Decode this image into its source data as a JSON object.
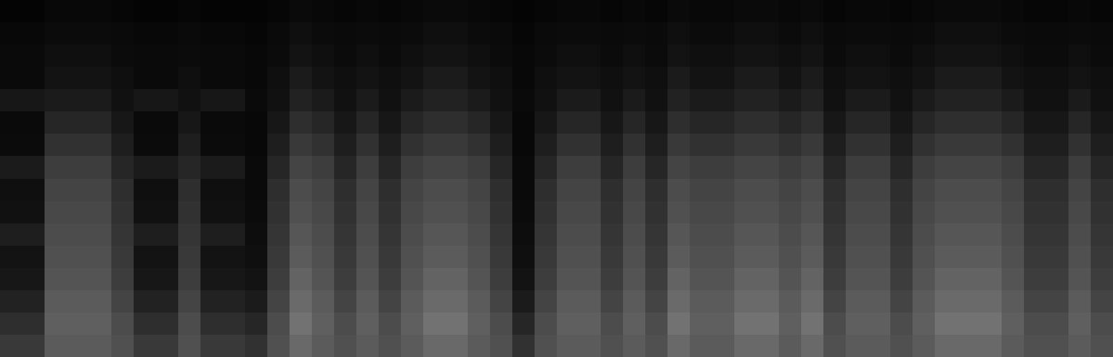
{
  "chart_data": {
    "type": "heatmap",
    "tick_labels": false,
    "zlim": [
      0,
      100
    ],
    "cells": [
      [
        2,
        2,
        4,
        4,
        4,
        3,
        2,
        2,
        3,
        2,
        2,
        2,
        3,
        5,
        4,
        3,
        4,
        3,
        4,
        5,
        5,
        4,
        3,
        2,
        3,
        4,
        4,
        3,
        4,
        3,
        5,
        4,
        4,
        5,
        5,
        4,
        5,
        3,
        4,
        4,
        3,
        4,
        5,
        5,
        5,
        4,
        3,
        3,
        4,
        3
      ],
      [
        4,
        4,
        6,
        6,
        6,
        5,
        4,
        4,
        5,
        4,
        4,
        3,
        5,
        8,
        6,
        5,
        6,
        5,
        6,
        8,
        8,
        6,
        5,
        3,
        5,
        6,
        6,
        5,
        6,
        5,
        8,
        6,
        6,
        8,
        8,
        6,
        8,
        5,
        6,
        6,
        5,
        6,
        8,
        8,
        8,
        6,
        5,
        5,
        6,
        5
      ],
      [
        5,
        5,
        8,
        8,
        8,
        6,
        5,
        5,
        6,
        5,
        5,
        4,
        6,
        10,
        8,
        6,
        8,
        6,
        8,
        10,
        10,
        8,
        6,
        4,
        6,
        8,
        8,
        6,
        8,
        6,
        10,
        8,
        8,
        10,
        10,
        8,
        10,
        6,
        8,
        8,
        6,
        8,
        10,
        10,
        10,
        8,
        6,
        6,
        8,
        6
      ],
      [
        5,
        5,
        10,
        10,
        10,
        8,
        5,
        5,
        8,
        5,
        5,
        4,
        8,
        14,
        10,
        8,
        10,
        8,
        10,
        14,
        14,
        10,
        8,
        4,
        8,
        10,
        10,
        8,
        10,
        8,
        14,
        10,
        10,
        14,
        14,
        10,
        14,
        8,
        10,
        10,
        8,
        10,
        14,
        14,
        14,
        10,
        8,
        8,
        10,
        8
      ],
      [
        12,
        12,
        14,
        14,
        14,
        9,
        12,
        12,
        9,
        12,
        12,
        5,
        9,
        18,
        14,
        9,
        14,
        9,
        14,
        18,
        18,
        14,
        9,
        5,
        9,
        14,
        14,
        9,
        14,
        9,
        18,
        14,
        14,
        18,
        18,
        14,
        18,
        9,
        14,
        14,
        9,
        14,
        18,
        18,
        18,
        14,
        9,
        9,
        14,
        9
      ],
      [
        5,
        5,
        20,
        20,
        20,
        12,
        5,
        5,
        12,
        5,
        5,
        4,
        12,
        24,
        20,
        12,
        20,
        12,
        20,
        24,
        24,
        20,
        12,
        4,
        12,
        20,
        20,
        12,
        20,
        12,
        24,
        20,
        20,
        24,
        24,
        20,
        24,
        12,
        20,
        20,
        12,
        20,
        24,
        24,
        24,
        20,
        12,
        12,
        20,
        12
      ],
      [
        6,
        6,
        26,
        26,
        26,
        16,
        6,
        6,
        16,
        6,
        6,
        4,
        16,
        30,
        26,
        16,
        26,
        16,
        26,
        30,
        30,
        26,
        16,
        4,
        16,
        26,
        26,
        16,
        26,
        16,
        30,
        26,
        26,
        30,
        30,
        26,
        30,
        16,
        26,
        26,
        16,
        26,
        30,
        30,
        30,
        26,
        16,
        16,
        26,
        16
      ],
      [
        14,
        14,
        32,
        32,
        32,
        20,
        14,
        14,
        20,
        14,
        14,
        5,
        20,
        36,
        32,
        20,
        32,
        20,
        32,
        36,
        36,
        32,
        20,
        5,
        20,
        32,
        32,
        20,
        32,
        20,
        36,
        32,
        32,
        36,
        36,
        32,
        36,
        20,
        32,
        32,
        20,
        32,
        36,
        36,
        36,
        32,
        20,
        20,
        32,
        20
      ],
      [
        8,
        8,
        36,
        36,
        36,
        24,
        8,
        8,
        24,
        8,
        8,
        5,
        24,
        40,
        36,
        24,
        36,
        24,
        36,
        40,
        40,
        36,
        24,
        5,
        24,
        36,
        36,
        24,
        36,
        24,
        40,
        36,
        36,
        40,
        40,
        36,
        40,
        24,
        36,
        36,
        24,
        36,
        40,
        40,
        40,
        36,
        24,
        24,
        36,
        24
      ],
      [
        9,
        9,
        38,
        38,
        38,
        26,
        9,
        9,
        26,
        9,
        9,
        6,
        26,
        42,
        38,
        26,
        38,
        26,
        38,
        42,
        42,
        38,
        26,
        6,
        26,
        38,
        38,
        26,
        38,
        26,
        42,
        38,
        38,
        42,
        42,
        38,
        42,
        26,
        38,
        38,
        26,
        38,
        42,
        42,
        42,
        38,
        26,
        26,
        38,
        26
      ],
      [
        16,
        16,
        40,
        40,
        40,
        28,
        16,
        16,
        28,
        16,
        16,
        7,
        28,
        45,
        40,
        28,
        40,
        28,
        40,
        45,
        45,
        40,
        28,
        7,
        28,
        40,
        40,
        28,
        40,
        28,
        45,
        40,
        40,
        45,
        45,
        40,
        45,
        28,
        40,
        40,
        28,
        40,
        45,
        45,
        45,
        40,
        28,
        28,
        40,
        28
      ],
      [
        10,
        10,
        42,
        42,
        42,
        30,
        10,
        10,
        30,
        10,
        10,
        8,
        30,
        48,
        42,
        30,
        42,
        30,
        42,
        48,
        48,
        42,
        30,
        8,
        30,
        42,
        42,
        30,
        42,
        30,
        48,
        42,
        42,
        48,
        48,
        42,
        48,
        30,
        42,
        42,
        30,
        42,
        48,
        48,
        48,
        42,
        30,
        30,
        42,
        30
      ],
      [
        12,
        12,
        44,
        44,
        44,
        32,
        12,
        12,
        32,
        12,
        12,
        10,
        32,
        52,
        44,
        32,
        44,
        32,
        44,
        52,
        52,
        44,
        32,
        10,
        32,
        44,
        44,
        32,
        44,
        32,
        52,
        44,
        44,
        52,
        52,
        44,
        52,
        32,
        44,
        44,
        32,
        44,
        52,
        52,
        52,
        44,
        32,
        32,
        44,
        32
      ],
      [
        18,
        18,
        48,
        48,
        48,
        36,
        18,
        18,
        36,
        18,
        18,
        14,
        36,
        56,
        48,
        36,
        48,
        36,
        48,
        56,
        56,
        48,
        36,
        14,
        36,
        48,
        48,
        36,
        48,
        36,
        56,
        48,
        48,
        56,
        56,
        48,
        56,
        36,
        48,
        48,
        36,
        48,
        56,
        56,
        56,
        48,
        36,
        36,
        48,
        36
      ],
      [
        24,
        24,
        50,
        50,
        50,
        40,
        24,
        24,
        40,
        24,
        24,
        20,
        40,
        60,
        50,
        40,
        50,
        40,
        50,
        60,
        60,
        50,
        40,
        20,
        40,
        50,
        50,
        40,
        50,
        40,
        60,
        50,
        50,
        60,
        60,
        50,
        60,
        40,
        50,
        50,
        40,
        50,
        60,
        60,
        60,
        50,
        40,
        40,
        50,
        40
      ],
      [
        30,
        30,
        48,
        48,
        48,
        42,
        30,
        30,
        42,
        30,
        30,
        26,
        42,
        55,
        48,
        42,
        48,
        42,
        48,
        55,
        55,
        48,
        42,
        26,
        42,
        48,
        48,
        42,
        48,
        42,
        55,
        48,
        48,
        55,
        55,
        48,
        55,
        42,
        48,
        48,
        42,
        48,
        55,
        55,
        55,
        48,
        42,
        42,
        48,
        42
      ]
    ]
  }
}
